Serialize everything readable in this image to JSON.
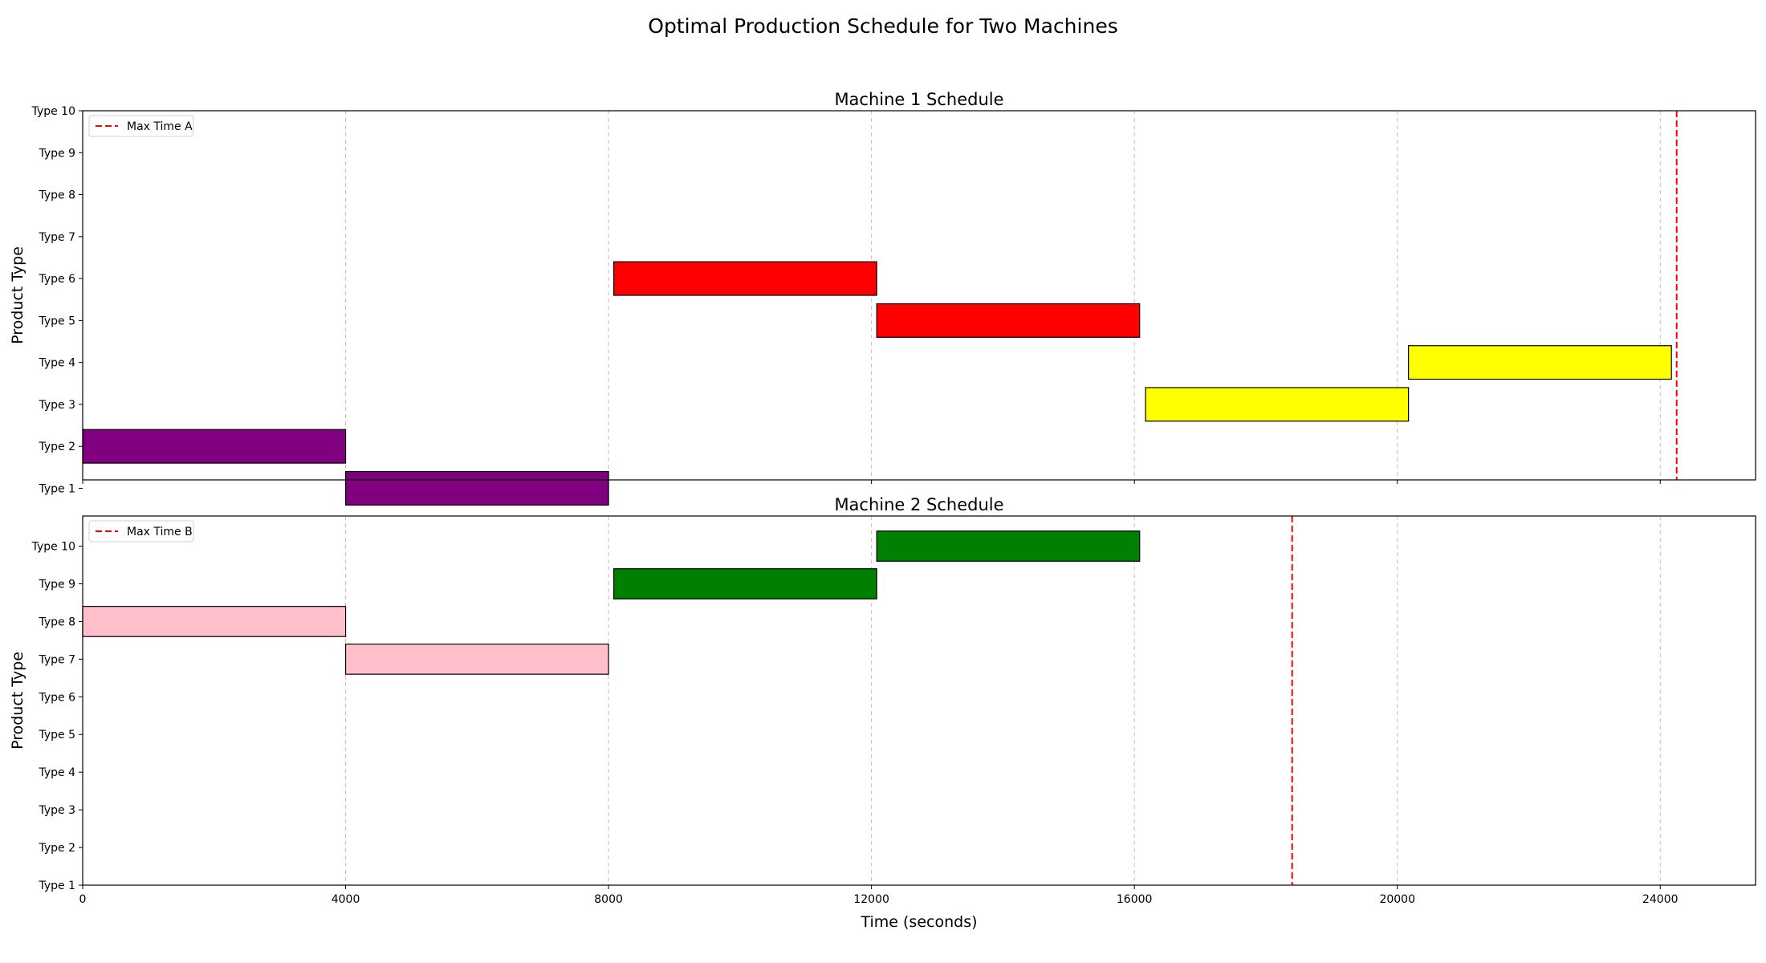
{
  "figure": {
    "title": "Optimal Production Schedule for Two Machines"
  },
  "chart_data": [
    {
      "type": "gantt",
      "title": "Machine 1 Schedule",
      "ylabel": "Product Type",
      "xlabel": "",
      "categories": [
        "Type 1",
        "Type 2",
        "Type 3",
        "Type 4",
        "Type 5",
        "Type 6",
        "Type 7",
        "Type 8",
        "Type 9",
        "Type 10"
      ],
      "xlim": [
        0,
        25450
      ],
      "xticks": [
        0,
        4000,
        8000,
        12000,
        16000,
        20000,
        24000
      ],
      "show_xtick_labels": false,
      "grid": "x",
      "legend": {
        "placement": "top-left",
        "entries": [
          "Max Time A"
        ]
      },
      "max_time": {
        "label": "Max Time A",
        "value": 24250,
        "color": "#ff0000"
      },
      "tasks": [
        {
          "type": "Type 2",
          "start": 0,
          "end": 4000,
          "color": "#800080"
        },
        {
          "type": "Type 1",
          "start": 4000,
          "end": 8000,
          "color": "#800080"
        },
        {
          "type": "Type 6",
          "start": 8080,
          "end": 12080,
          "color": "#ff0000"
        },
        {
          "type": "Type 5",
          "start": 12080,
          "end": 16080,
          "color": "#ff0000"
        },
        {
          "type": "Type 3",
          "start": 16170,
          "end": 20170,
          "color": "#ffff00"
        },
        {
          "type": "Type 4",
          "start": 20170,
          "end": 24170,
          "color": "#ffff00"
        }
      ]
    },
    {
      "type": "gantt",
      "title": "Machine 2 Schedule",
      "ylabel": "Product Type",
      "xlabel": "Time (seconds)",
      "categories": [
        "Type 1",
        "Type 2",
        "Type 3",
        "Type 4",
        "Type 5",
        "Type 6",
        "Type 7",
        "Type 8",
        "Type 9",
        "Type 10"
      ],
      "xlim": [
        0,
        25450
      ],
      "xticks": [
        0,
        4000,
        8000,
        12000,
        16000,
        20000,
        24000
      ],
      "show_xtick_labels": true,
      "grid": "x",
      "legend": {
        "placement": "top-left",
        "entries": [
          "Max Time B"
        ]
      },
      "max_time": {
        "label": "Max Time B",
        "value": 18400,
        "color": "#ff0000"
      },
      "tasks": [
        {
          "type": "Type 8",
          "start": 0,
          "end": 4000,
          "color": "#ffc0cb"
        },
        {
          "type": "Type 7",
          "start": 4000,
          "end": 8000,
          "color": "#ffc0cb"
        },
        {
          "type": "Type 9",
          "start": 8080,
          "end": 12080,
          "color": "#008000"
        },
        {
          "type": "Type 10",
          "start": 12080,
          "end": 16080,
          "color": "#008000"
        }
      ]
    }
  ]
}
